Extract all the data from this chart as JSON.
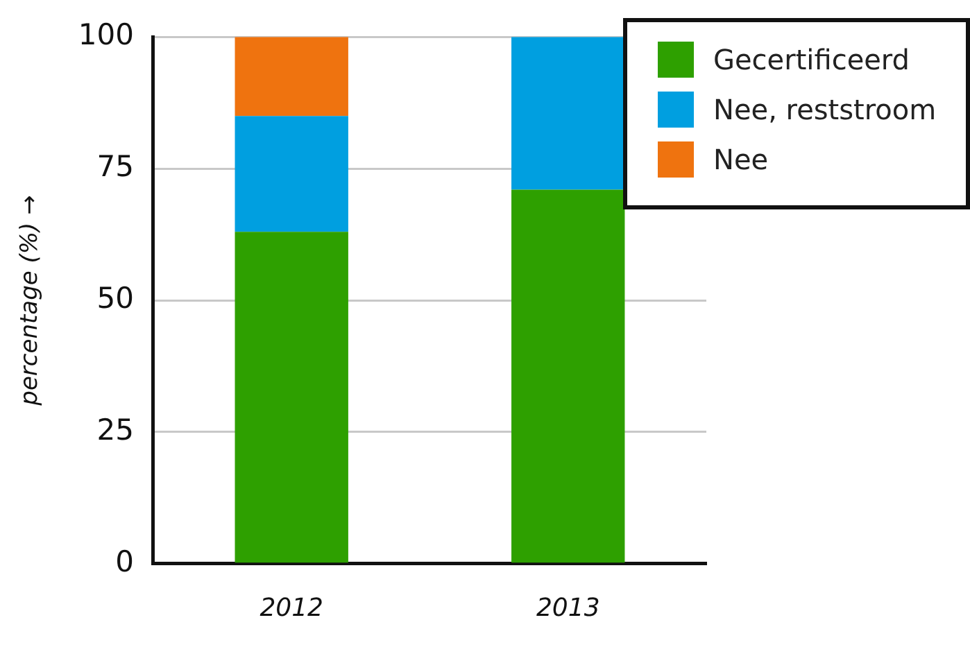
{
  "chart_data": {
    "type": "bar",
    "stacked": true,
    "ylabel": "percentage (%) →",
    "categories": [
      "2012",
      "2013"
    ],
    "series": [
      {
        "name": "Gecertificeerd",
        "color": "#2ea000",
        "values": [
          63,
          71
        ]
      },
      {
        "name": "Nee, reststroom",
        "color": "#009fe0",
        "values": [
          22,
          29
        ]
      },
      {
        "name": "Nee",
        "color": "#ef730f",
        "values": [
          15,
          0
        ]
      }
    ],
    "ylim": [
      0,
      100
    ],
    "yticks": [
      0,
      25,
      50,
      75,
      100
    ],
    "grid": "y",
    "legend": "top right"
  }
}
